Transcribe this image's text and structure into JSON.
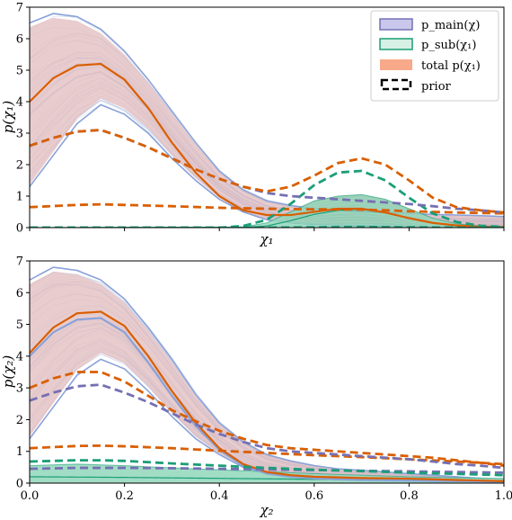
{
  "colors": {
    "main": "#7570b3",
    "main_fill": "#c9c8ec",
    "main_line": "#8aa2d8",
    "sub": "#1b9e77",
    "sub_fill": "#7fd0b0",
    "total": "#d95f02",
    "total_fill": "#f7a98a",
    "prior": "#000000"
  },
  "legend": {
    "main": "p_main(χ)",
    "sub": "p_sub(χ₁)",
    "total": "total p(χ₁)",
    "prior": "prior"
  },
  "chart_data": [
    {
      "type": "line",
      "xlabel": "χ₁",
      "ylabel": "p(χ₁)",
      "xlim": [
        0.0,
        1.0
      ],
      "ylim": [
        0,
        7
      ],
      "yticks": [
        0,
        1,
        2,
        3,
        4,
        5,
        6,
        7
      ],
      "legend_position": "top-right",
      "series": [
        {
          "name": "p_main(χ)",
          "role": "main_band_upper",
          "x": [
            0.0,
            0.05,
            0.1,
            0.15,
            0.2,
            0.25,
            0.3,
            0.35,
            0.4,
            0.45,
            0.5,
            0.55,
            0.6,
            0.65,
            0.7,
            0.75,
            0.8,
            0.85,
            0.9,
            0.95,
            1.0
          ],
          "y": [
            6.5,
            6.8,
            6.7,
            6.3,
            5.6,
            4.7,
            3.7,
            2.7,
            1.8,
            1.2,
            0.85,
            0.7,
            0.6,
            0.55,
            0.5,
            0.48,
            0.45,
            0.42,
            0.4,
            0.38,
            0.35
          ]
        },
        {
          "role": "main_band_lower",
          "x": [
            0.0,
            0.05,
            0.1,
            0.15,
            0.2,
            0.25,
            0.3,
            0.35,
            0.4,
            0.45,
            0.5,
            0.55,
            0.6,
            0.65,
            0.7,
            0.75,
            0.8,
            0.85,
            0.9,
            0.95,
            1.0
          ],
          "y": [
            1.3,
            2.3,
            3.3,
            3.9,
            3.6,
            3.0,
            2.2,
            1.5,
            0.9,
            0.5,
            0.25,
            0.15,
            0.1,
            0.08,
            0.06,
            0.05,
            0.04,
            0.03,
            0.03,
            0.02,
            0.02
          ]
        },
        {
          "name": "total p(χ₁)",
          "role": "total_median",
          "x": [
            0.0,
            0.05,
            0.1,
            0.15,
            0.2,
            0.25,
            0.3,
            0.35,
            0.4,
            0.45,
            0.5,
            0.55,
            0.6,
            0.65,
            0.7,
            0.75,
            0.8,
            0.85,
            0.9,
            0.95,
            1.0
          ],
          "y": [
            4.0,
            4.75,
            5.15,
            5.2,
            4.7,
            3.8,
            2.7,
            1.75,
            1.0,
            0.55,
            0.4,
            0.4,
            0.5,
            0.6,
            0.6,
            0.48,
            0.3,
            0.15,
            0.07,
            0.03,
            0.02
          ]
        },
        {
          "name": "p_sub(χ₁)",
          "role": "sub_band_upper",
          "x": [
            0.0,
            0.45,
            0.5,
            0.55,
            0.6,
            0.65,
            0.7,
            0.75,
            0.8,
            0.85,
            0.9,
            0.95,
            1.0
          ],
          "y": [
            0.0,
            0.02,
            0.15,
            0.5,
            0.85,
            1.0,
            1.05,
            0.9,
            0.6,
            0.3,
            0.12,
            0.05,
            0.02
          ]
        },
        {
          "role": "sub_median",
          "x": [
            0.0,
            0.45,
            0.5,
            0.55,
            0.6,
            0.65,
            0.7,
            0.75,
            0.8,
            0.85,
            0.9,
            0.95,
            1.0
          ],
          "y": [
            0.0,
            0.01,
            0.05,
            0.22,
            0.42,
            0.55,
            0.58,
            0.47,
            0.3,
            0.14,
            0.05,
            0.02,
            0.0
          ]
        },
        {
          "name": "prior",
          "role": "prior_total_upper",
          "x": [
            0.0,
            0.05,
            0.1,
            0.15,
            0.2,
            0.25,
            0.3,
            0.35,
            0.4,
            0.45,
            0.5,
            0.55,
            0.6,
            0.65,
            0.7,
            0.75,
            0.8,
            0.85,
            0.9,
            0.95,
            1.0
          ],
          "y": [
            2.6,
            2.85,
            3.05,
            3.1,
            2.85,
            2.55,
            2.2,
            1.85,
            1.55,
            1.3,
            1.15,
            1.3,
            1.65,
            2.05,
            2.2,
            2.0,
            1.5,
            0.95,
            0.65,
            0.55,
            0.48
          ]
        },
        {
          "role": "prior_sub_upper",
          "x": [
            0.0,
            0.4,
            0.45,
            0.5,
            0.55,
            0.6,
            0.65,
            0.7,
            0.75,
            0.8,
            0.85,
            0.9,
            0.95,
            1.0
          ],
          "y": [
            0.0,
            0.0,
            0.05,
            0.25,
            0.75,
            1.35,
            1.75,
            1.8,
            1.5,
            0.95,
            0.45,
            0.18,
            0.06,
            0.02
          ]
        },
        {
          "role": "prior_main_upper",
          "x": [
            0.0,
            0.05,
            0.1,
            0.15,
            0.2,
            0.25,
            0.3,
            0.35,
            0.4,
            0.45,
            0.5,
            0.55,
            0.6,
            0.65,
            0.7,
            0.75,
            0.8,
            0.85,
            0.9,
            0.95,
            1.0
          ],
          "y": [
            2.6,
            2.85,
            3.05,
            3.1,
            2.85,
            2.55,
            2.2,
            1.85,
            1.55,
            1.3,
            1.1,
            1.0,
            0.95,
            0.9,
            0.85,
            0.8,
            0.75,
            0.68,
            0.6,
            0.55,
            0.48
          ]
        },
        {
          "role": "prior_total_lower",
          "x": [
            0.0,
            0.1,
            0.15,
            0.2,
            0.3,
            0.4,
            0.5,
            0.6,
            0.65,
            0.7,
            0.75,
            0.8,
            0.9,
            1.0
          ],
          "y": [
            0.65,
            0.72,
            0.74,
            0.72,
            0.68,
            0.63,
            0.6,
            0.58,
            0.58,
            0.57,
            0.55,
            0.52,
            0.48,
            0.45
          ]
        },
        {
          "role": "prior_sub_lower",
          "x": [
            0.0,
            0.5,
            0.6,
            0.7,
            0.8,
            0.9,
            1.0
          ],
          "y": [
            0.0,
            0.0,
            0.01,
            0.02,
            0.01,
            0.0,
            0.0
          ]
        }
      ]
    },
    {
      "type": "line",
      "xlabel": "χ₂",
      "ylabel": "p(χ₂)",
      "xlim": [
        0.0,
        1.0
      ],
      "ylim": [
        0,
        7
      ],
      "xticks": [
        0.0,
        0.2,
        0.4,
        0.6,
        0.8,
        1.0
      ],
      "yticks": [
        0,
        1,
        2,
        3,
        4,
        5,
        6,
        7
      ],
      "series": [
        {
          "role": "main_band_upper",
          "x": [
            0.0,
            0.05,
            0.1,
            0.15,
            0.2,
            0.25,
            0.3,
            0.35,
            0.4,
            0.45,
            0.5,
            0.55,
            0.6,
            0.65,
            0.7,
            0.75,
            0.8,
            0.85,
            0.9,
            0.95,
            1.0
          ],
          "y": [
            6.4,
            6.8,
            6.7,
            6.4,
            5.8,
            4.9,
            3.9,
            2.8,
            1.9,
            1.3,
            0.9,
            0.7,
            0.55,
            0.45,
            0.4,
            0.35,
            0.3,
            0.25,
            0.2,
            0.15,
            0.1
          ]
        },
        {
          "role": "main_band_lower",
          "x": [
            0.0,
            0.05,
            0.1,
            0.15,
            0.2,
            0.25,
            0.3,
            0.35,
            0.4,
            0.45,
            0.5,
            0.55,
            0.6,
            0.65,
            0.7,
            0.75,
            0.8,
            0.85,
            0.9,
            0.95,
            1.0
          ],
          "y": [
            1.4,
            2.4,
            3.4,
            3.9,
            3.6,
            2.9,
            2.1,
            1.4,
            0.9,
            0.5,
            0.3,
            0.2,
            0.15,
            0.1,
            0.08,
            0.06,
            0.05,
            0.04,
            0.03,
            0.02,
            0.02
          ]
        },
        {
          "role": "total_median",
          "x": [
            0.0,
            0.05,
            0.1,
            0.15,
            0.2,
            0.25,
            0.3,
            0.35,
            0.4,
            0.45,
            0.5,
            0.55,
            0.6,
            0.65,
            0.7,
            0.75,
            0.8,
            0.85,
            0.9,
            0.95,
            1.0
          ],
          "y": [
            4.1,
            4.9,
            5.35,
            5.4,
            4.95,
            4.0,
            2.9,
            1.9,
            1.1,
            0.6,
            0.35,
            0.25,
            0.2,
            0.18,
            0.16,
            0.15,
            0.14,
            0.12,
            0.1,
            0.08,
            0.06
          ]
        },
        {
          "role": "main_median",
          "x": [
            0.0,
            0.05,
            0.1,
            0.15,
            0.2,
            0.25,
            0.3,
            0.35,
            0.4,
            0.45,
            0.5,
            0.55,
            0.6,
            0.65,
            0.7,
            0.75,
            0.8,
            0.85,
            0.9,
            0.95,
            1.0
          ],
          "y": [
            4.0,
            4.75,
            5.15,
            5.2,
            4.75,
            3.8,
            2.75,
            1.8,
            1.05,
            0.55,
            0.3,
            0.2,
            0.15,
            0.12,
            0.1,
            0.09,
            0.08,
            0.07,
            0.06,
            0.05,
            0.04
          ]
        },
        {
          "role": "sub_band_upper",
          "x": [
            0.0,
            0.1,
            0.2,
            0.3,
            0.4,
            0.5,
            0.6,
            0.7,
            0.8,
            0.9,
            1.0
          ],
          "y": [
            0.55,
            0.6,
            0.55,
            0.48,
            0.42,
            0.36,
            0.3,
            0.25,
            0.2,
            0.17,
            0.15
          ]
        },
        {
          "role": "sub_median",
          "x": [
            0.0,
            0.2,
            0.4,
            0.6,
            0.8,
            1.0
          ],
          "y": [
            0.2,
            0.18,
            0.15,
            0.12,
            0.1,
            0.08
          ]
        },
        {
          "role": "prior_total_upper",
          "x": [
            0.0,
            0.05,
            0.1,
            0.15,
            0.2,
            0.25,
            0.3,
            0.35,
            0.4,
            0.45,
            0.5,
            0.55,
            0.6,
            0.65,
            0.7,
            0.75,
            0.8,
            0.85,
            0.9,
            0.95,
            1.0
          ],
          "y": [
            3.0,
            3.3,
            3.5,
            3.5,
            3.2,
            2.75,
            2.3,
            1.95,
            1.65,
            1.4,
            1.2,
            1.1,
            1.05,
            1.0,
            0.95,
            0.9,
            0.85,
            0.8,
            0.72,
            0.64,
            0.55
          ]
        },
        {
          "role": "prior_main_upper",
          "x": [
            0.0,
            0.05,
            0.1,
            0.15,
            0.2,
            0.25,
            0.3,
            0.35,
            0.4,
            0.45,
            0.5,
            0.55,
            0.6,
            0.65,
            0.7,
            0.75,
            0.8,
            0.85,
            0.9,
            0.95,
            1.0
          ],
          "y": [
            2.6,
            2.85,
            3.05,
            3.1,
            2.85,
            2.55,
            2.2,
            1.85,
            1.55,
            1.3,
            1.1,
            1.0,
            0.95,
            0.9,
            0.85,
            0.8,
            0.75,
            0.68,
            0.6,
            0.55,
            0.48
          ]
        },
        {
          "role": "prior_total_lower",
          "x": [
            0.0,
            0.1,
            0.15,
            0.2,
            0.3,
            0.4,
            0.5,
            0.6,
            0.7,
            0.8,
            0.9,
            1.0
          ],
          "y": [
            1.1,
            1.17,
            1.18,
            1.16,
            1.1,
            1.02,
            0.95,
            0.88,
            0.82,
            0.75,
            0.68,
            0.6
          ]
        },
        {
          "role": "prior_sub_upper",
          "x": [
            0.0,
            0.1,
            0.15,
            0.2,
            0.3,
            0.4,
            0.5,
            0.6,
            0.7,
            0.8,
            0.9,
            1.0
          ],
          "y": [
            0.68,
            0.72,
            0.72,
            0.7,
            0.62,
            0.55,
            0.48,
            0.42,
            0.38,
            0.33,
            0.29,
            0.25
          ]
        },
        {
          "role": "prior_main_lower",
          "x": [
            0.0,
            0.1,
            0.2,
            0.3,
            0.4,
            0.5,
            0.6,
            0.7,
            0.8,
            0.9,
            1.0
          ],
          "y": [
            0.45,
            0.48,
            0.48,
            0.47,
            0.45,
            0.43,
            0.41,
            0.39,
            0.37,
            0.35,
            0.33
          ]
        }
      ]
    }
  ]
}
